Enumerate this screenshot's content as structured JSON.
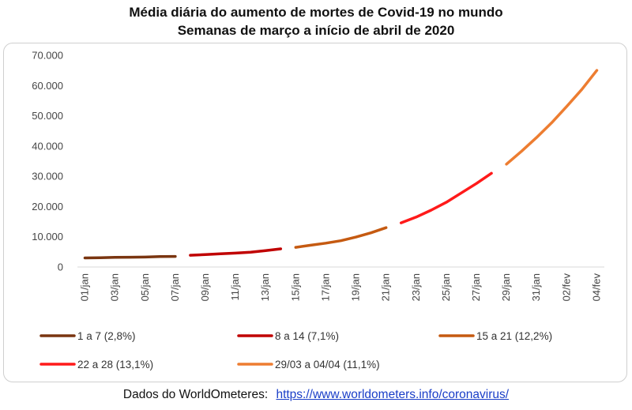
{
  "title": "Média diária do aumento de mortes de Covid-19 no mundo",
  "subtitle": "Semanas de março a início de abril de 2020",
  "source_label": "Dados do WorldOmeteres:",
  "source_link": "https://www.worldometers.info/coronavirus/",
  "chart_data": {
    "type": "line",
    "ylim": [
      0,
      70000
    ],
    "y_ticks": [
      "0",
      "10.000",
      "20.000",
      "30.000",
      "40.000",
      "50.000",
      "60.000",
      "70.000"
    ],
    "x_ticks": [
      "01/jan",
      "03/jan",
      "05/jan",
      "07/jan",
      "09/jan",
      "11/jan",
      "13/jan",
      "15/jan",
      "17/jan",
      "19/jan",
      "21/jan",
      "23/jan",
      "25/jan",
      "27/jan",
      "29/jan",
      "31/jan",
      "02/fev",
      "04/fev"
    ],
    "x_range": [
      1,
      35
    ],
    "legend_position": "bottom",
    "series": [
      {
        "name": "1 a 7 (2,8%)",
        "color": "#7a3510",
        "x": [
          1,
          2,
          3,
          4,
          5,
          6,
          7
        ],
        "y": [
          3000,
          3050,
          3200,
          3250,
          3300,
          3450,
          3500
        ]
      },
      {
        "name": "8 a 14 (7,1%)",
        "color": "#c00000",
        "x": [
          8,
          9,
          10,
          11,
          12,
          13,
          14
        ],
        "y": [
          3900,
          4100,
          4350,
          4600,
          4900,
          5400,
          6000
        ]
      },
      {
        "name": "15 a 21 (12,2%)",
        "color": "#c55a11",
        "x": [
          15,
          16,
          17,
          18,
          19,
          20,
          21
        ],
        "y": [
          6500,
          7200,
          7900,
          8700,
          9900,
          11300,
          13000
        ]
      },
      {
        "name": "22 a 28 (13,1%)",
        "color": "#ff1a1a",
        "x": [
          22,
          23,
          24,
          25,
          26,
          27,
          28
        ],
        "y": [
          14600,
          16500,
          18800,
          21400,
          24500,
          27600,
          31000
        ]
      },
      {
        "name": "29/03 a 04/04 (11,1%)",
        "color": "#ed7d31",
        "x": [
          29,
          30,
          31,
          32,
          33,
          34,
          35
        ],
        "y": [
          34000,
          38300,
          42800,
          47700,
          53100,
          58700,
          65000
        ]
      }
    ]
  }
}
